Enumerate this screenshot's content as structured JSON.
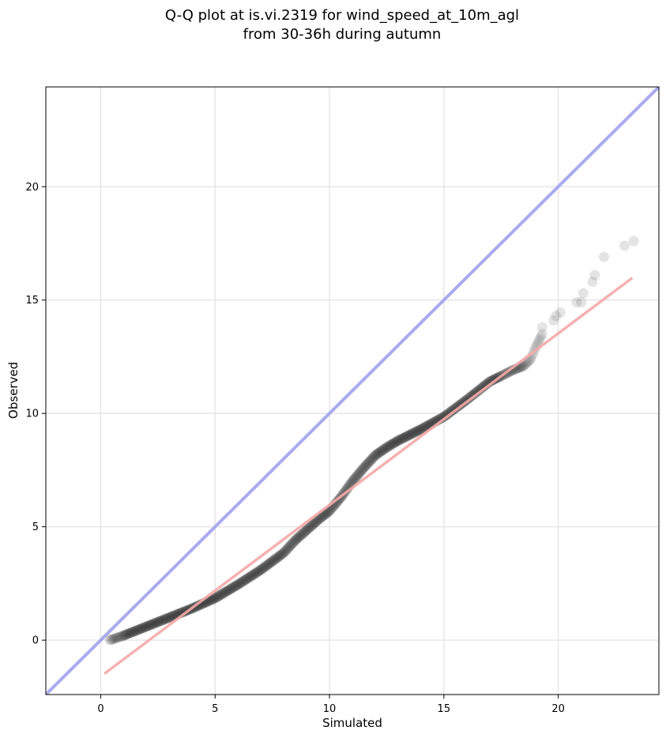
{
  "chart_data": {
    "type": "scatter",
    "title_lines": [
      "Q-Q plot at is.vi.2319 for wind_speed_at_10m_agl",
      "from 30-36h during autumn"
    ],
    "xlabel": "Simulated",
    "ylabel": "Observed",
    "xlim": [
      -2.4,
      24.4
    ],
    "ylim": [
      -2.4,
      24.4
    ],
    "xticks": [
      0,
      5,
      10,
      15,
      20
    ],
    "yticks": [
      0,
      5,
      10,
      15,
      20
    ],
    "grid": true,
    "identity_line": {
      "from": [
        -2.4,
        -2.4
      ],
      "to": [
        24.4,
        24.4
      ],
      "color": "#aaaaf0"
    },
    "fit_line": {
      "from": [
        0.2,
        -1.45
      ],
      "to": [
        23.2,
        15.95
      ],
      "color": "#f5a8a8"
    },
    "point_color": "#222222",
    "quantile_curve": [
      [
        0.4,
        0.0
      ],
      [
        1.0,
        0.2
      ],
      [
        1.5,
        0.4
      ],
      [
        2.0,
        0.6
      ],
      [
        3.0,
        1.0
      ],
      [
        4.0,
        1.4
      ],
      [
        5.0,
        1.85
      ],
      [
        6.0,
        2.45
      ],
      [
        7.0,
        3.1
      ],
      [
        8.0,
        3.85
      ],
      [
        8.5,
        4.4
      ],
      [
        9.0,
        4.85
      ],
      [
        9.5,
        5.3
      ],
      [
        10.0,
        5.7
      ],
      [
        10.5,
        6.3
      ],
      [
        11.0,
        7.0
      ],
      [
        11.5,
        7.6
      ],
      [
        12.0,
        8.15
      ],
      [
        12.5,
        8.5
      ],
      [
        13.0,
        8.8
      ],
      [
        14.0,
        9.3
      ],
      [
        15.0,
        9.85
      ],
      [
        16.0,
        10.6
      ],
      [
        17.0,
        11.4
      ],
      [
        17.5,
        11.65
      ],
      [
        18.0,
        11.9
      ],
      [
        18.5,
        12.1
      ],
      [
        18.8,
        12.4
      ],
      [
        19.0,
        12.9
      ],
      [
        19.3,
        13.5
      ]
    ],
    "tail_points": [
      [
        19.3,
        13.8
      ],
      [
        19.8,
        14.1
      ],
      [
        19.9,
        14.3
      ],
      [
        20.1,
        14.45
      ],
      [
        20.8,
        14.9
      ],
      [
        21.0,
        14.9
      ],
      [
        21.1,
        15.3
      ],
      [
        21.5,
        15.8
      ],
      [
        21.6,
        16.1
      ],
      [
        22.0,
        16.9
      ],
      [
        22.9,
        17.4
      ],
      [
        23.3,
        17.6
      ]
    ]
  }
}
